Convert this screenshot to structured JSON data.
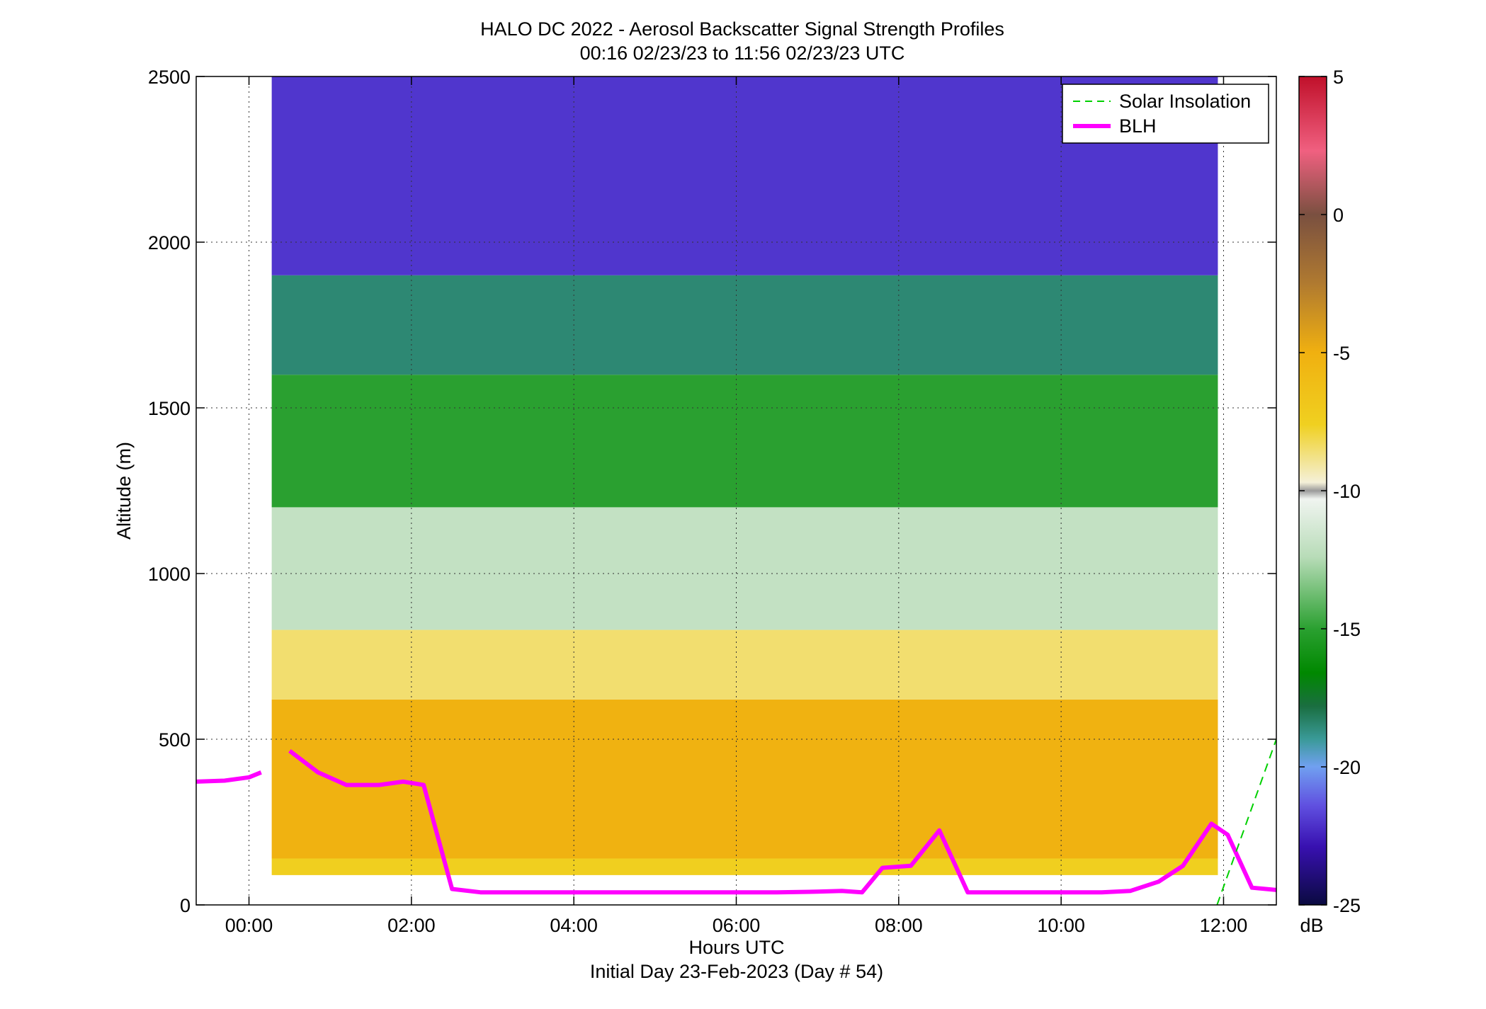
{
  "title": {
    "line1": "HALO DC 2022 - Aerosol Backscatter Signal Strength Profiles",
    "line2": "00:16 02/23/23 to 11:56 02/23/23  UTC"
  },
  "chart_data": {
    "type": "heatmap",
    "xlabel": "Hours UTC",
    "xlabel2": "Initial Day 23-Feb-2023 (Day # 54)",
    "ylabel": "Altitude (m)",
    "xlim_hours": [
      -0.65,
      12.65
    ],
    "ylim": [
      0,
      2500
    ],
    "x_ticks": [
      0,
      2,
      4,
      6,
      8,
      10,
      12
    ],
    "x_tick_labels": [
      "00:00",
      "02:00",
      "04:00",
      "06:00",
      "08:00",
      "10:00",
      "12:00"
    ],
    "y_ticks": [
      0,
      500,
      1000,
      1500,
      2000,
      2500
    ],
    "y_tick_labels": [
      "0",
      "500",
      "1000",
      "1500",
      "2000",
      "2500"
    ],
    "grid": "dotted",
    "colorbar": {
      "label": "dB",
      "range": [
        -25,
        5
      ],
      "ticks": [
        5,
        0,
        -5,
        -10,
        -15,
        -20,
        -25
      ],
      "tick_labels": [
        "5",
        "0",
        "-5",
        "-10",
        "-15",
        "-20",
        "-25"
      ]
    },
    "heatmap": {
      "x_start_hours": 0.28,
      "x_end_hours": 11.93,
      "z_bands": [
        {
          "z_min": 90,
          "z_max": 140,
          "db": -7.5
        },
        {
          "z_min": 140,
          "z_max": 620,
          "db": -5.2
        },
        {
          "z_min": 620,
          "z_max": 830,
          "db": -8.5
        },
        {
          "z_min": 830,
          "z_max": 1200,
          "db": -12
        },
        {
          "z_min": 1200,
          "z_max": 1600,
          "db": -15
        },
        {
          "z_min": 1600,
          "z_max": 1900,
          "db": -18.5
        },
        {
          "z_min": 1900,
          "z_max": 2500,
          "db": -22
        }
      ]
    },
    "series": [
      {
        "name": "BLH",
        "color": "#ff00ff",
        "segments": [
          {
            "x": [
              -0.65,
              -0.3,
              0.0,
              0.15
            ],
            "y": [
              372,
              375,
              385,
              400
            ]
          },
          {
            "x": [
              0.5,
              0.85,
              1.2,
              1.6,
              1.9,
              2.15,
              2.5,
              2.85,
              3.5,
              4.5,
              5.5,
              6.5,
              7.0,
              7.3,
              7.55,
              7.8,
              8.15,
              8.5,
              8.85,
              9.5,
              10.0,
              10.5,
              10.85,
              11.2,
              11.5,
              11.85,
              12.05,
              12.35,
              12.65
            ],
            "y": [
              465,
              400,
              362,
              362,
              372,
              362,
              48,
              38,
              38,
              38,
              38,
              38,
              40,
              42,
              38,
              112,
              118,
              225,
              38,
              38,
              38,
              38,
              42,
              70,
              118,
              245,
              212,
              52,
              45
            ]
          }
        ]
      },
      {
        "name": "Solar Insolation",
        "color": "#00d000",
        "style": "dashed",
        "segments": [
          {
            "x": [
              11.92,
              12.65
            ],
            "y": [
              0,
              500
            ]
          }
        ]
      }
    ],
    "legend": {
      "placement": "top-right",
      "entries": [
        "Solar Insolation",
        "BLH"
      ]
    }
  }
}
